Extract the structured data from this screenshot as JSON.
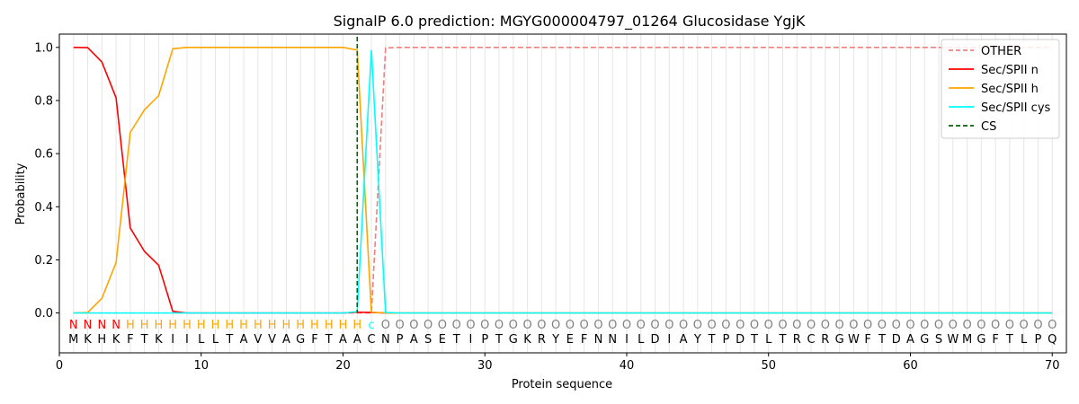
{
  "chart_data": {
    "type": "line",
    "title": "SignalP 6.0 prediction: MGYG000004797_01264 Glucosidase YgjK",
    "xlabel": "Protein sequence",
    "ylabel": "Probability",
    "xlim": [
      0,
      71
    ],
    "ylim": [
      -0.15,
      1.05
    ],
    "xticks": [
      0,
      10,
      20,
      30,
      40,
      50,
      60,
      70
    ],
    "yticks": [
      "0.0",
      "0.2",
      "0.4",
      "0.6",
      "0.8",
      "1.0"
    ],
    "grid": "vertical at every residue",
    "legend_position": "top-right",
    "sequence": [
      "M",
      "K",
      "H",
      "K",
      "F",
      "T",
      "K",
      "I",
      "I",
      "L",
      "L",
      "T",
      "A",
      "V",
      "V",
      "A",
      "G",
      "F",
      "T",
      "A",
      "A",
      "C",
      "N",
      "P",
      "A",
      "S",
      "E",
      "T",
      "I",
      "P",
      "T",
      "G",
      "K",
      "R",
      "Y",
      "E",
      "F",
      "N",
      "N",
      "I",
      "L",
      "D",
      "I",
      "A",
      "Y",
      "T",
      "P",
      "D",
      "T",
      "L",
      "T",
      "R",
      "C",
      "R",
      "G",
      "W",
      "F",
      "T",
      "D",
      "A",
      "G",
      "S",
      "W",
      "M",
      "G",
      "F",
      "T",
      "L",
      "P",
      "Q"
    ],
    "region_labels": [
      "N",
      "N",
      "N",
      "N",
      "H",
      "H",
      "H",
      "H",
      "H",
      "H",
      "H",
      "H",
      "H",
      "H",
      "H",
      "H",
      "H",
      "H",
      "H",
      "H",
      "H",
      "c",
      "O",
      "O",
      "O",
      "O",
      "O",
      "O",
      "O",
      "O",
      "O",
      "O",
      "O",
      "O",
      "O",
      "O",
      "O",
      "O",
      "O",
      "O",
      "O",
      "O",
      "O",
      "O",
      "O",
      "O",
      "O",
      "O",
      "O",
      "O",
      "O",
      "O",
      "O",
      "O",
      "O",
      "O",
      "O",
      "O",
      "O",
      "O",
      "O",
      "O",
      "O",
      "O",
      "O",
      "O",
      "O",
      "O",
      "O",
      "O"
    ],
    "region_colors": {
      "N": "#ff0000",
      "H": "#ffa500",
      "c": "#00ffff",
      "O": "#808080"
    },
    "cleavage_site": 21,
    "series": [
      {
        "name": "OTHER",
        "color": "#f08080",
        "dash": "dashed",
        "values": [
          0,
          0,
          0,
          0,
          0,
          0,
          0,
          0,
          0,
          0,
          0,
          0,
          0,
          0,
          0,
          0,
          0,
          0,
          0,
          0,
          0,
          0,
          0.998,
          1,
          1,
          1,
          1,
          1,
          1,
          1,
          1,
          1,
          1,
          1,
          1,
          1,
          1,
          1,
          1,
          1,
          1,
          1,
          1,
          1,
          1,
          1,
          1,
          1,
          1,
          1,
          1,
          1,
          1,
          1,
          1,
          1,
          1,
          1,
          1,
          1,
          1,
          1,
          1,
          1,
          1,
          1,
          1,
          1,
          1,
          1
        ]
      },
      {
        "name": "Sec/SPII n",
        "color": "#ff0000",
        "dash": "solid",
        "values": [
          1.0,
          0.999,
          0.945,
          0.81,
          0.32,
          0.232,
          0.18,
          0.006,
          0,
          0,
          0,
          0,
          0,
          0,
          0,
          0,
          0,
          0,
          0,
          0,
          0.003,
          0.002,
          0,
          0,
          0,
          0,
          0,
          0,
          0,
          0,
          0,
          0,
          0,
          0,
          0,
          0,
          0,
          0,
          0,
          0,
          0,
          0,
          0,
          0,
          0,
          0,
          0,
          0,
          0,
          0,
          0,
          0,
          0,
          0,
          0,
          0,
          0,
          0,
          0,
          0,
          0,
          0,
          0,
          0,
          0,
          0,
          0,
          0,
          0,
          0
        ]
      },
      {
        "name": "Sec/SPII h",
        "color": "#ffa500",
        "dash": "solid",
        "values": [
          0,
          0.002,
          0.055,
          0.19,
          0.68,
          0.765,
          0.818,
          0.995,
          1.0,
          1.0,
          1.0,
          1.0,
          1.0,
          1.0,
          1.0,
          1.0,
          1.0,
          1.0,
          1.0,
          1.0,
          0.99,
          0.003,
          0,
          0,
          0,
          0,
          0,
          0,
          0,
          0,
          0,
          0,
          0,
          0,
          0,
          0,
          0,
          0,
          0,
          0,
          0,
          0,
          0,
          0,
          0,
          0,
          0,
          0,
          0,
          0,
          0,
          0,
          0,
          0,
          0,
          0,
          0,
          0,
          0,
          0,
          0,
          0,
          0,
          0,
          0,
          0,
          0,
          0,
          0,
          0
        ]
      },
      {
        "name": "Sec/SPII cys",
        "color": "#00ffff",
        "dash": "solid",
        "values": [
          0,
          0,
          0,
          0,
          0,
          0,
          0,
          0,
          0,
          0,
          0,
          0,
          0,
          0,
          0,
          0,
          0,
          0,
          0,
          0,
          0.005,
          0.99,
          0.002,
          0,
          0,
          0,
          0,
          0,
          0,
          0,
          0,
          0,
          0,
          0,
          0,
          0,
          0,
          0,
          0,
          0,
          0,
          0,
          0,
          0,
          0,
          0,
          0,
          0,
          0,
          0,
          0,
          0,
          0,
          0,
          0,
          0,
          0,
          0,
          0,
          0,
          0,
          0,
          0,
          0,
          0,
          0,
          0,
          0,
          0,
          0
        ]
      },
      {
        "name": "CS",
        "color": "#006400",
        "dash": "dashed",
        "values": []
      }
    ]
  }
}
